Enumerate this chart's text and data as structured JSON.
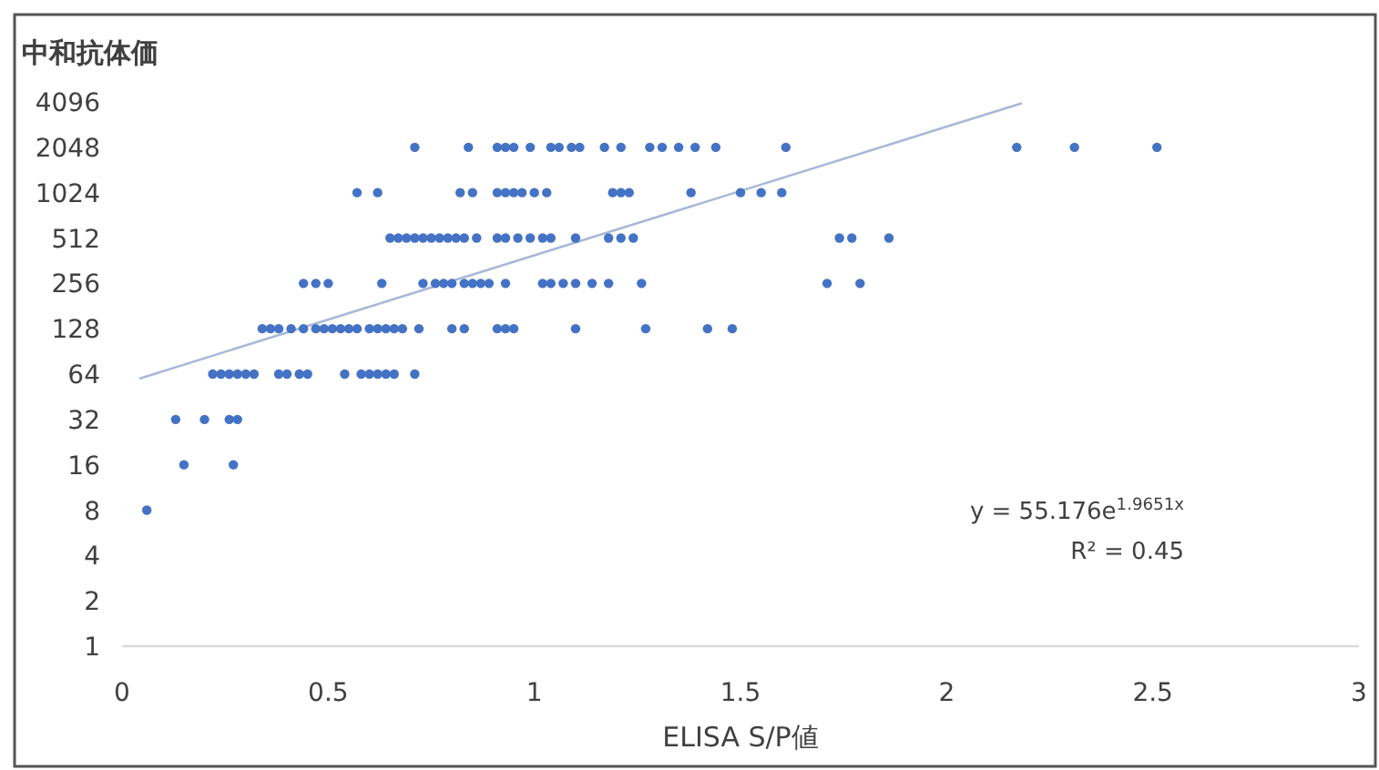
{
  "chart_data": {
    "type": "scatter",
    "ylabel": "中和抗体価",
    "xlabel": "ELISA S/P値",
    "log": "y",
    "xlim": [
      0,
      3
    ],
    "xticks": [
      0,
      {
        "value": 0.5,
        "label": "0.5"
      },
      1,
      {
        "value": 1.5,
        "label": "1.5"
      },
      2,
      {
        "value": 2.5,
        "label": "2.5"
      },
      3
    ],
    "ylim": [
      1,
      4096
    ],
    "yticks": [
      1,
      2,
      4,
      8,
      16,
      32,
      64,
      128,
      256,
      512,
      1024,
      2048,
      4096
    ],
    "annotations": [
      "y = 55.176e$^{1.9651x}$",
      "R² = 0.45"
    ],
    "series": [
      {
        "type": "scatter",
        "color": "#4472c4",
        "marker": "circle",
        "x": [
          0.06,
          0.15,
          0.27,
          0.13,
          0.2,
          0.26,
          0.28,
          0.22,
          0.24,
          0.26,
          0.28,
          0.3,
          0.32,
          0.38,
          0.4,
          0.43,
          0.45,
          0.54,
          0.58,
          0.6,
          0.62,
          0.64,
          0.66,
          0.71,
          0.34,
          0.36,
          0.38,
          0.41,
          0.44,
          0.47,
          0.49,
          0.51,
          0.53,
          0.55,
          0.57,
          0.6,
          0.62,
          0.64,
          0.66,
          0.68,
          0.72,
          0.8,
          0.83,
          0.91,
          0.93,
          0.95,
          1.1,
          1.27,
          1.42,
          1.48,
          0.44,
          0.47,
          0.5,
          0.63,
          0.73,
          0.76,
          0.78,
          0.8,
          0.83,
          0.85,
          0.87,
          0.89,
          0.93,
          1.02,
          1.04,
          1.07,
          1.1,
          1.14,
          1.18,
          1.26,
          1.71,
          1.79,
          0.65,
          0.67,
          0.69,
          0.71,
          0.73,
          0.75,
          0.77,
          0.79,
          0.81,
          0.83,
          0.86,
          0.91,
          0.93,
          0.96,
          0.99,
          1.02,
          1.04,
          1.1,
          1.18,
          1.21,
          1.24,
          1.74,
          1.77,
          1.86,
          0.57,
          0.62,
          0.82,
          0.85,
          0.91,
          0.93,
          0.95,
          0.97,
          1.0,
          1.03,
          1.19,
          1.21,
          1.23,
          1.38,
          1.5,
          1.55,
          1.6,
          0.71,
          0.84,
          0.91,
          0.93,
          0.95,
          0.99,
          1.04,
          1.06,
          1.09,
          1.11,
          1.17,
          1.21,
          1.28,
          1.31,
          1.35,
          1.39,
          1.44,
          1.61,
          2.17,
          2.31,
          2.51
        ],
        "values": [
          8,
          16,
          16,
          32,
          32,
          32,
          32,
          64,
          64,
          64,
          64,
          64,
          64,
          64,
          64,
          64,
          64,
          64,
          64,
          64,
          64,
          64,
          64,
          64,
          128,
          128,
          128,
          128,
          128,
          128,
          128,
          128,
          128,
          128,
          128,
          128,
          128,
          128,
          128,
          128,
          128,
          128,
          128,
          128,
          128,
          128,
          128,
          128,
          128,
          128,
          256,
          256,
          256,
          256,
          256,
          256,
          256,
          256,
          256,
          256,
          256,
          256,
          256,
          256,
          256,
          256,
          256,
          256,
          256,
          256,
          256,
          256,
          512,
          512,
          512,
          512,
          512,
          512,
          512,
          512,
          512,
          512,
          512,
          512,
          512,
          512,
          512,
          512,
          512,
          512,
          512,
          512,
          512,
          512,
          512,
          512,
          1024,
          1024,
          1024,
          1024,
          1024,
          1024,
          1024,
          1024,
          1024,
          1024,
          1024,
          1024,
          1024,
          1024,
          1024,
          1024,
          1024,
          2048,
          2048,
          2048,
          2048,
          2048,
          2048,
          2048,
          2048,
          2048,
          2048,
          2048,
          2048,
          2048,
          2048,
          2048,
          2048,
          2048,
          2048,
          2048,
          2048,
          2048
        ]
      },
      {
        "type": "line",
        "color": "#a9b8d8",
        "line_style": "solid",
        "x": [
          0.044,
          2.18
        ],
        "values": [
          60,
          4000
        ]
      }
    ]
  }
}
